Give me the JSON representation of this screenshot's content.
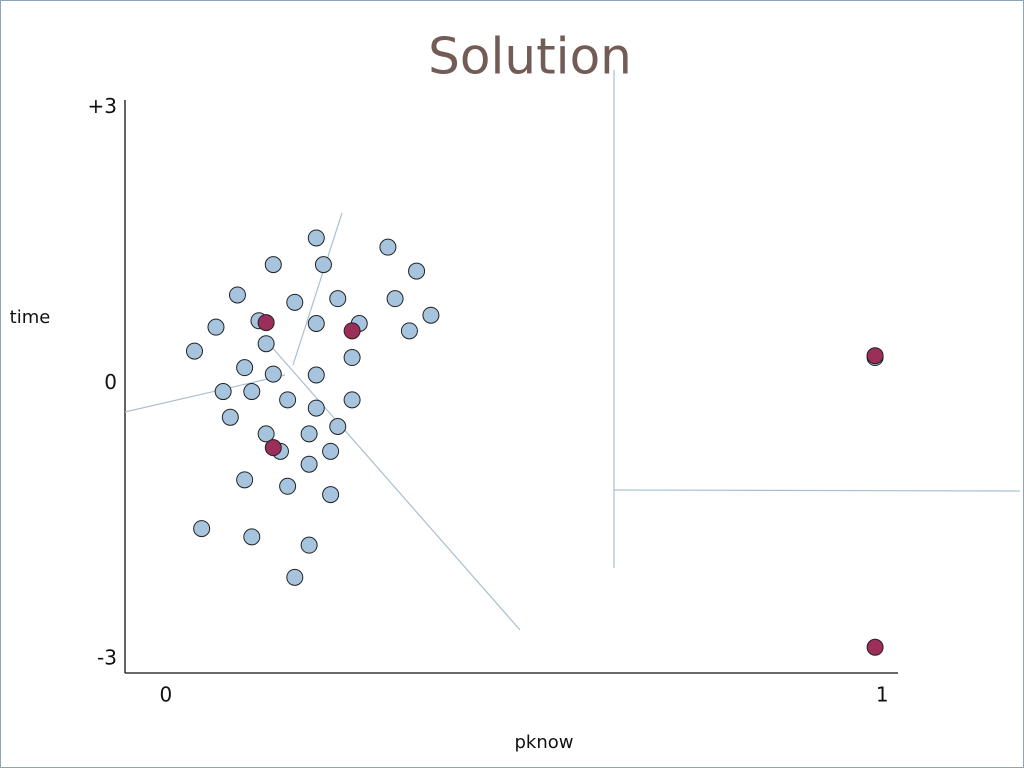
{
  "chart_data": {
    "type": "scatter",
    "title": "Solution",
    "x_label": "pknow",
    "y_label": "time",
    "xlim": [
      -0.057,
      1.022
    ],
    "ylim": [
      -3.15,
      3.08
    ],
    "xticks": [
      0,
      1
    ],
    "yticks": [
      {
        "value": -3,
        "label": "-3"
      },
      0,
      {
        "value": 3,
        "label": "+3"
      }
    ],
    "series": [
      {
        "color": "#a7c4df",
        "x": [
          0.21,
          0.31,
          0.15,
          0.22,
          0.35,
          0.1,
          0.18,
          0.24,
          0.32,
          0.37,
          0.07,
          0.13,
          0.21,
          0.27,
          0.34,
          0.04,
          0.14,
          0.26,
          0.11,
          0.15,
          0.21,
          0.08,
          0.12,
          0.17,
          0.26,
          0.21,
          0.09,
          0.24,
          0.14,
          0.2,
          0.16,
          0.23,
          0.2,
          0.11,
          0.17,
          0.23,
          0.05,
          0.12,
          0.2,
          0.18,
          0.99
        ],
        "y": [
          1.58,
          1.48,
          1.29,
          1.29,
          1.22,
          0.96,
          0.88,
          0.92,
          0.92,
          0.74,
          0.61,
          0.68,
          0.65,
          0.65,
          0.57,
          0.35,
          0.43,
          0.28,
          0.17,
          0.1,
          0.09,
          -0.09,
          -0.09,
          -0.18,
          -0.18,
          -0.27,
          -0.37,
          -0.47,
          -0.55,
          -0.55,
          -0.74,
          -0.74,
          -0.88,
          -1.05,
          -1.12,
          -1.21,
          -1.58,
          -1.67,
          -1.76,
          -2.11,
          0.28
        ]
      },
      {
        "color": "#9b2f5a",
        "x": [
          0.14,
          0.26,
          0.15,
          0.99,
          0.99
        ],
        "y": [
          0.66,
          0.57,
          -0.7,
          0.3,
          -2.87
        ]
      }
    ]
  }
}
